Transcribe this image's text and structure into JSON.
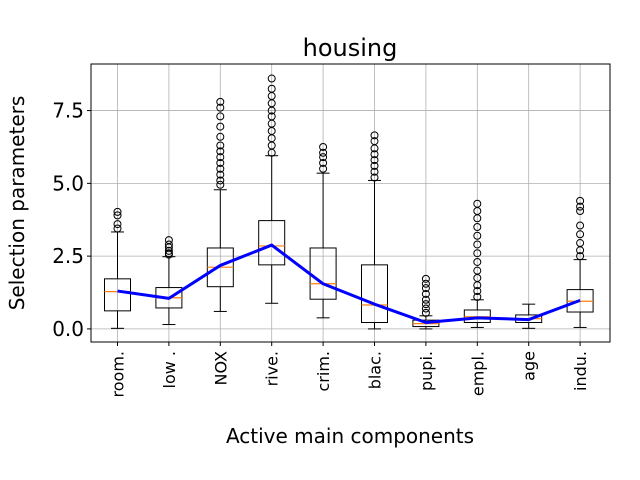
{
  "chart_data": {
    "type": "box",
    "title": "housing",
    "xlabel": "Active main components",
    "ylabel": "Selection parameters",
    "ylim": [
      -0.45,
      9.1
    ],
    "yticks": [
      {
        "value": 0.0,
        "label": "0.0"
      },
      {
        "value": 2.5,
        "label": "2.5"
      },
      {
        "value": 5.0,
        "label": "5.0"
      },
      {
        "value": 7.5,
        "label": "7.5"
      }
    ],
    "grid": true,
    "colors": {
      "box": "#000000",
      "median": "#ff7f0e",
      "line": "#0000ff",
      "grid": "#b0b0b0"
    },
    "categories": [
      "room.",
      "low .",
      "NOX",
      "rive.",
      "crim.",
      "blac.",
      "pupi.",
      "empl.",
      "age",
      "indu."
    ],
    "boxes": [
      {
        "q1": 0.62,
        "median": 1.28,
        "q3": 1.72,
        "whisker_low": 0.02,
        "whisker_high": 3.33,
        "outliers": [
          3.45,
          3.6,
          3.9,
          4.02
        ]
      },
      {
        "q1": 0.72,
        "median": 1.07,
        "q3": 1.42,
        "whisker_low": 0.15,
        "whisker_high": 2.48,
        "outliers": [
          2.55,
          2.6,
          2.68,
          2.8,
          2.9,
          3.05
        ]
      },
      {
        "q1": 1.45,
        "median": 2.12,
        "q3": 2.78,
        "whisker_low": 0.6,
        "whisker_high": 4.78,
        "outliers": [
          4.95,
          5.1,
          5.3,
          5.5,
          5.7,
          5.9,
          6.1,
          6.3,
          6.6,
          6.95,
          7.3,
          7.6,
          7.8
        ]
      },
      {
        "q1": 2.2,
        "median": 2.85,
        "q3": 3.72,
        "whisker_low": 0.88,
        "whisker_high": 5.95,
        "outliers": [
          6.05,
          6.3,
          6.55,
          6.8,
          7.05,
          7.3,
          7.5,
          7.75,
          8.0,
          8.25,
          8.6
        ]
      },
      {
        "q1": 1.02,
        "median": 1.55,
        "q3": 2.78,
        "whisker_low": 0.38,
        "whisker_high": 5.35,
        "outliers": [
          5.5,
          5.7,
          5.9,
          6.05,
          6.25
        ]
      },
      {
        "q1": 0.22,
        "median": 0.82,
        "q3": 2.2,
        "whisker_low": 0.0,
        "whisker_high": 5.1,
        "outliers": [
          5.2,
          5.4,
          5.6,
          5.8,
          6.0,
          6.2,
          6.45,
          6.65
        ]
      },
      {
        "q1": 0.08,
        "median": 0.18,
        "q3": 0.3,
        "whisker_low": 0.0,
        "whisker_high": 0.45,
        "outliers": [
          0.55,
          0.7,
          0.85,
          1.0,
          1.2,
          1.4,
          1.55,
          1.72
        ]
      },
      {
        "q1": 0.22,
        "median": 0.42,
        "q3": 0.65,
        "whisker_low": 0.05,
        "whisker_high": 1.0,
        "outliers": [
          1.1,
          1.3,
          1.5,
          1.75,
          2.0,
          2.3,
          2.6,
          2.9,
          3.2,
          3.5,
          3.8,
          4.05,
          4.3
        ]
      },
      {
        "q1": 0.22,
        "median": 0.35,
        "q3": 0.48,
        "whisker_low": 0.02,
        "whisker_high": 0.85,
        "outliers": []
      },
      {
        "q1": 0.58,
        "median": 0.95,
        "q3": 1.35,
        "whisker_low": 0.05,
        "whisker_high": 2.38,
        "outliers": [
          2.5,
          2.7,
          2.95,
          3.25,
          3.55,
          4.05,
          4.2,
          4.4
        ]
      }
    ],
    "mean_line": [
      1.3,
      1.05,
      2.18,
      2.88,
      1.55,
      0.85,
      0.22,
      0.38,
      0.32,
      0.98
    ]
  }
}
